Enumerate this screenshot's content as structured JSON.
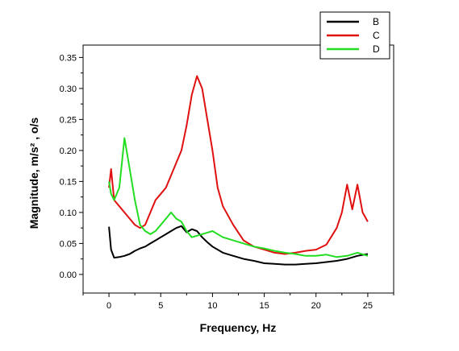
{
  "chart_data": {
    "type": "line",
    "title": "",
    "xlabel": "Frequency, Hz",
    "ylabel": "Magnitude, m/s² , o/s",
    "xlim": [
      -2.5,
      27.5
    ],
    "ylim": [
      -0.03,
      0.37
    ],
    "x_ticks": [
      0,
      5,
      10,
      15,
      20,
      25
    ],
    "y_ticks": [
      0.0,
      0.05,
      0.1,
      0.15,
      0.2,
      0.25,
      0.3,
      0.35
    ],
    "x_tick_labels": [
      "0",
      "5",
      "10",
      "15",
      "20",
      "25"
    ],
    "y_tick_labels": [
      "0.00",
      "0.05",
      "0.10",
      "0.15",
      "0.20",
      "0.25",
      "0.30",
      "0.35"
    ],
    "grid": false,
    "legend_position": "top-right",
    "series": [
      {
        "name": "B",
        "color": "#000000",
        "x": [
          0,
          0.2,
          0.5,
          1,
          1.5,
          2,
          2.5,
          3,
          3.5,
          4,
          4.5,
          5,
          5.5,
          6,
          6.5,
          7,
          7.5,
          8,
          8.5,
          9,
          9.5,
          10,
          11,
          12,
          13,
          14,
          15,
          16,
          17,
          18,
          19,
          20,
          21,
          22,
          23,
          24,
          25
        ],
        "values": [
          0.077,
          0.04,
          0.027,
          0.028,
          0.03,
          0.033,
          0.038,
          0.042,
          0.045,
          0.05,
          0.055,
          0.06,
          0.065,
          0.07,
          0.075,
          0.078,
          0.068,
          0.073,
          0.07,
          0.06,
          0.052,
          0.045,
          0.035,
          0.03,
          0.025,
          0.022,
          0.018,
          0.017,
          0.016,
          0.016,
          0.017,
          0.018,
          0.02,
          0.022,
          0.025,
          0.03,
          0.033
        ]
      },
      {
        "name": "C",
        "color": "#e01010",
        "x": [
          0,
          0.2,
          0.5,
          1,
          1.5,
          2,
          2.5,
          3,
          3.5,
          4,
          4.5,
          5,
          5.5,
          6,
          6.5,
          7,
          7.5,
          8,
          8.5,
          9,
          9.5,
          10,
          10.5,
          11,
          12,
          13,
          14,
          15,
          16,
          17,
          18,
          19,
          20,
          21,
          22,
          22.5,
          23,
          23.5,
          24,
          24.5,
          25
        ],
        "values": [
          0.14,
          0.17,
          0.12,
          0.11,
          0.1,
          0.09,
          0.08,
          0.075,
          0.08,
          0.1,
          0.12,
          0.13,
          0.14,
          0.16,
          0.18,
          0.2,
          0.24,
          0.29,
          0.32,
          0.3,
          0.25,
          0.2,
          0.14,
          0.11,
          0.08,
          0.055,
          0.045,
          0.04,
          0.035,
          0.033,
          0.035,
          0.038,
          0.04,
          0.048,
          0.075,
          0.1,
          0.145,
          0.105,
          0.145,
          0.1,
          0.085
        ]
      },
      {
        "name": "D",
        "color": "#22dd22",
        "x": [
          0,
          0.2,
          0.5,
          1,
          1.5,
          2,
          2.5,
          3,
          3.5,
          4,
          4.5,
          5,
          5.5,
          6,
          6.5,
          7,
          7.5,
          8,
          9,
          10,
          11,
          12,
          13,
          14,
          15,
          16,
          17,
          18,
          19,
          20,
          21,
          22,
          23,
          24,
          25
        ],
        "values": [
          0.15,
          0.13,
          0.12,
          0.14,
          0.22,
          0.17,
          0.12,
          0.08,
          0.07,
          0.065,
          0.07,
          0.08,
          0.09,
          0.1,
          0.09,
          0.085,
          0.07,
          0.06,
          0.065,
          0.07,
          0.06,
          0.055,
          0.05,
          0.045,
          0.042,
          0.038,
          0.035,
          0.033,
          0.03,
          0.03,
          0.032,
          0.028,
          0.03,
          0.035,
          0.03
        ]
      }
    ]
  }
}
